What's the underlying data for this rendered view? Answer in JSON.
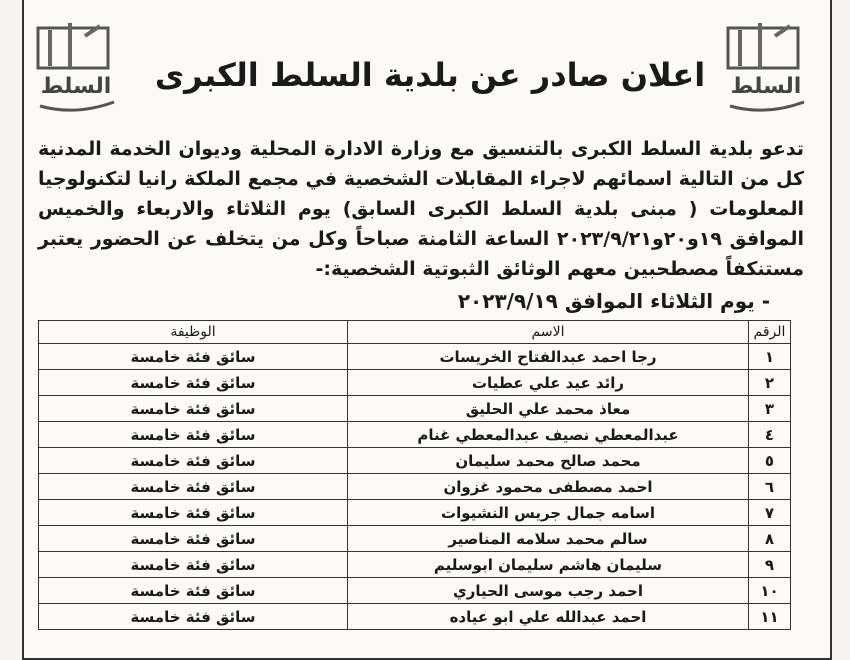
{
  "logo_text": "السلط",
  "title": "اعلان صادر عن بلدية السلط الكبرى",
  "paragraph": "تدعو بلدية السلط الكبرى بالتنسيق مع  وزارة الادارة المحلية وديوان الخدمة المدنية كل من التالية اسمائهم لاجراء المقابلات الشخصية في مجمع الملكة رانيا لتكنولوجيا المعلومات ( مبنى بلدية السلط الكبرى السابق)  يوم الثلاثاء والاربعاء والخميس الموافق ١٩و٢٠و٢٠٢٣/٩/٢١ الساعة الثامنة صباحاً وكل من يتخلف عن الحضور يعتبر مستنكفاً مصطحبين معهم الوثائق الثبوتية الشخصية:-",
  "day_heading": "-  يوم الثلاثاء الموافق ٢٠٢٣/٩/١٩",
  "table": {
    "headers": [
      "الرقم",
      "الاسم",
      "الوظيفة"
    ],
    "rows": [
      [
        "١",
        "رجا احمد عبدالفتاح الخريسات",
        "سائق فئة خامسة"
      ],
      [
        "٢",
        "رائد عيد علي عطيات",
        "سائق فئة خامسة"
      ],
      [
        "٣",
        "معاذ محمد علي الحليق",
        "سائق فئة خامسة"
      ],
      [
        "٤",
        "عبدالمعطي نصيف عبدالمعطي غنام",
        "سائق فئة خامسة"
      ],
      [
        "٥",
        "محمد صالح محمد سليمان",
        "سائق فئة خامسة"
      ],
      [
        "٦",
        "احمد مصطفى محمود غزوان",
        "سائق فئة خامسة"
      ],
      [
        "٧",
        "اسامه جمال جريس النشيوات",
        "سائق فئة خامسة"
      ],
      [
        "٨",
        "سالم محمد سلامه المناصير",
        "سائق فئة خامسة"
      ],
      [
        "٩",
        "سليمان هاشم سليمان ابوسليم",
        "سائق فئة خامسة"
      ],
      [
        "١٠",
        "احمد رجب موسى الحياري",
        "سائق فئة خامسة"
      ],
      [
        "١١",
        "احمد عبدالله علي ابو عياده",
        "سائق فئة خامسة"
      ]
    ]
  }
}
